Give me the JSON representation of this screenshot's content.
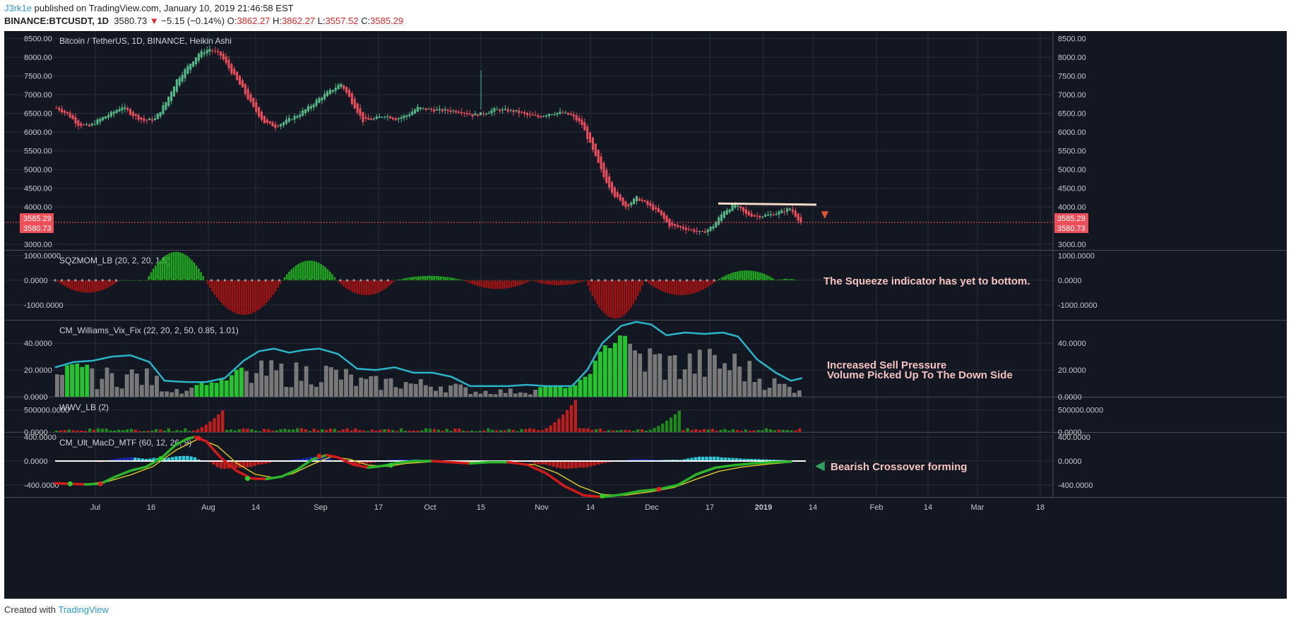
{
  "header": {
    "user": "J3rk1e",
    "published": "published on TradingView.com, January 10, 2019 21:46:58 EST",
    "symbol": "BINANCE:BTCUSDT, 1D",
    "last": "3580.73",
    "arrow": "▼",
    "change": "−5.15 (−0.14%)",
    "o_label": "O:",
    "o": "3862.27",
    "h_label": "H:",
    "h": "3862.27",
    "l_label": "L:",
    "l": "3557.52",
    "c_label": "C:",
    "c": "3585.29"
  },
  "footer": {
    "created_with": "Created with",
    "brand": "TradingView"
  },
  "colors": {
    "background": "#131722",
    "grid": "#2a2e39",
    "bull": "#53b987",
    "bear": "#eb4d5c",
    "price_tag": "#f0505a",
    "teal": "#2ab4c8",
    "green_hist": "#22c52e",
    "gray_hist": "#787878",
    "red_hist": "#c21d1d",
    "annotation": "#f5c4c0"
  },
  "chart_data": [
    {
      "type": "candlestick",
      "title": "Bitcoin / TetherUS, 1D, BINANCE, Heikin Ashi",
      "x_ticks": [
        "Jul",
        "16",
        "Aug",
        "14",
        "Sep",
        "17",
        "Oct",
        "15",
        "Nov",
        "14",
        "Dec",
        "17",
        "2019",
        "14",
        "Feb",
        "14",
        "Mar",
        "18"
      ],
      "y_ticks": [
        "8500.00",
        "8000.00",
        "7500.00",
        "7000.00",
        "6500.00",
        "6000.00",
        "5500.00",
        "5000.00",
        "4500.00",
        "4000.00",
        "3000.00"
      ],
      "ylim": [
        2850,
        8700
      ],
      "price_tags": [
        "3585.29",
        "3580.73"
      ],
      "close_path": [
        [
          0,
          6650
        ],
        [
          4,
          6480
        ],
        [
          8,
          6200
        ],
        [
          12,
          6150
        ],
        [
          16,
          6350
        ],
        [
          20,
          6500
        ],
        [
          24,
          6680
        ],
        [
          28,
          6450
        ],
        [
          32,
          6300
        ],
        [
          36,
          6350
        ],
        [
          40,
          6800
        ],
        [
          44,
          7400
        ],
        [
          48,
          7750
        ],
        [
          52,
          8100
        ],
        [
          56,
          8220
        ],
        [
          60,
          8050
        ],
        [
          64,
          7600
        ],
        [
          68,
          7150
        ],
        [
          72,
          6650
        ],
        [
          76,
          6250
        ],
        [
          80,
          6150
        ],
        [
          84,
          6300
        ],
        [
          88,
          6450
        ],
        [
          92,
          6650
        ],
        [
          96,
          6900
        ],
        [
          100,
          7100
        ],
        [
          104,
          7300
        ],
        [
          108,
          6800
        ],
        [
          112,
          6300
        ],
        [
          116,
          6350
        ],
        [
          120,
          6450
        ],
        [
          124,
          6350
        ],
        [
          128,
          6450
        ],
        [
          132,
          6650
        ],
        [
          136,
          6600
        ],
        [
          140,
          6580
        ],
        [
          144,
          6570
        ],
        [
          148,
          6550
        ],
        [
          152,
          6450
        ],
        [
          156,
          6500
        ],
        [
          160,
          6600
        ],
        [
          164,
          6580
        ],
        [
          168,
          6550
        ],
        [
          172,
          6450
        ],
        [
          176,
          6400
        ],
        [
          180,
          6500
        ],
        [
          184,
          6520
        ],
        [
          188,
          6450
        ],
        [
          192,
          6200
        ],
        [
          196,
          5500
        ],
        [
          200,
          4800
        ],
        [
          204,
          4300
        ],
        [
          208,
          4000
        ],
        [
          212,
          4250
        ],
        [
          216,
          4050
        ],
        [
          220,
          3850
        ],
        [
          224,
          3500
        ],
        [
          228,
          3450
        ],
        [
          232,
          3380
        ],
        [
          236,
          3300
        ],
        [
          240,
          3500
        ],
        [
          244,
          3900
        ],
        [
          248,
          4050
        ],
        [
          252,
          3800
        ],
        [
          256,
          3750
        ],
        [
          260,
          3780
        ],
        [
          264,
          3850
        ],
        [
          268,
          3960
        ],
        [
          272,
          3585
        ]
      ],
      "resistance": [
        [
          3.2,
          4090
        ],
        [
          3.68,
          4060
        ]
      ],
      "volume_wick_note": "Oct 15 spike high ~7650",
      "annotation": "▼"
    },
    {
      "type": "histogram",
      "title": "SQZMOM_LB (20, 2, 20, 1.5)",
      "y_ticks": [
        "1000.0000",
        "0.0000",
        "-1000.0000"
      ],
      "ylim": [
        -1600,
        1200
      ],
      "annotation": "The Squeeze indicator has yet to bottom.",
      "segments": [
        [
          0,
          28,
          -500
        ],
        [
          28,
          40,
          0
        ],
        [
          40,
          66,
          1150
        ],
        [
          66,
          100,
          -1400
        ],
        [
          100,
          124,
          800
        ],
        [
          124,
          150,
          -600
        ],
        [
          150,
          180,
          180
        ],
        [
          180,
          210,
          -350
        ],
        [
          210,
          234,
          -200
        ],
        [
          234,
          260,
          -1550
        ],
        [
          260,
          292,
          -600
        ],
        [
          292,
          318,
          400
        ],
        [
          318,
          328,
          60
        ]
      ]
    },
    {
      "type": "histogram_line",
      "title": "CM_Williams_Vix_Fix (22, 20, 2, 50, 0.85, 1.01)",
      "y_ticks": [
        "40.0000",
        "20.0000",
        "0.0000"
      ],
      "ylim": [
        0,
        57
      ],
      "annotation_line1": "Increased Sell Pressure",
      "annotation_line2": "Volume Picked Up To The Down Side",
      "line": [
        [
          0,
          22
        ],
        [
          10,
          26
        ],
        [
          20,
          27
        ],
        [
          30,
          30
        ],
        [
          40,
          31
        ],
        [
          50,
          26
        ],
        [
          58,
          12
        ],
        [
          70,
          11
        ],
        [
          80,
          11
        ],
        [
          90,
          14
        ],
        [
          100,
          27
        ],
        [
          108,
          34
        ],
        [
          116,
          36
        ],
        [
          124,
          33
        ],
        [
          132,
          35
        ],
        [
          140,
          36
        ],
        [
          150,
          32
        ],
        [
          160,
          21
        ],
        [
          170,
          20
        ],
        [
          180,
          22
        ],
        [
          190,
          18
        ],
        [
          200,
          18
        ],
        [
          210,
          15
        ],
        [
          220,
          8
        ],
        [
          240,
          8
        ],
        [
          250,
          9
        ],
        [
          260,
          8
        ],
        [
          274,
          8
        ],
        [
          282,
          20
        ],
        [
          290,
          40
        ],
        [
          300,
          53
        ],
        [
          308,
          56
        ],
        [
          316,
          54
        ],
        [
          324,
          46
        ],
        [
          334,
          48
        ],
        [
          344,
          47
        ],
        [
          354,
          48
        ],
        [
          362,
          45
        ],
        [
          372,
          28
        ],
        [
          382,
          18
        ],
        [
          390,
          12
        ],
        [
          396,
          14
        ]
      ],
      "green_ranges": [
        [
          3,
          17
        ],
        [
          72,
          98
        ],
        [
          256,
          302
        ]
      ]
    },
    {
      "type": "histogram",
      "title": "WWV_LB (2)",
      "y_ticks": [
        "500000.0000",
        "0.0000"
      ],
      "ylim": [
        0,
        780000
      ],
      "spikes": [
        [
          72,
          90,
          550000
        ],
        [
          256,
          276,
          750000
        ],
        [
          312,
          330,
          450000
        ]
      ]
    },
    {
      "type": "macd",
      "title": "CM_Ult_MacD_MTF (60, 12, 26, 9)",
      "y_ticks": [
        "400.0000",
        "0.0000",
        "-400.0000"
      ],
      "ylim": [
        -600,
        470
      ],
      "annotation": "Bearish Crossover forming",
      "macd": [
        [
          0,
          -370
        ],
        [
          8,
          -380
        ],
        [
          16,
          -390
        ],
        [
          24,
          -380
        ],
        [
          32,
          -260
        ],
        [
          40,
          -160
        ],
        [
          48,
          -100
        ],
        [
          56,
          40
        ],
        [
          64,
          270
        ],
        [
          70,
          370
        ],
        [
          74,
          400
        ],
        [
          80,
          330
        ],
        [
          88,
          50
        ],
        [
          96,
          -160
        ],
        [
          104,
          -290
        ],
        [
          112,
          -300
        ],
        [
          120,
          -260
        ],
        [
          128,
          -150
        ],
        [
          136,
          20
        ],
        [
          144,
          100
        ],
        [
          150,
          60
        ],
        [
          158,
          -60
        ],
        [
          166,
          -110
        ],
        [
          174,
          -80
        ],
        [
          182,
          -30
        ],
        [
          190,
          0
        ],
        [
          200,
          0
        ],
        [
          210,
          -20
        ],
        [
          220,
          -40
        ],
        [
          230,
          -20
        ],
        [
          240,
          -20
        ],
        [
          250,
          -60
        ],
        [
          260,
          -200
        ],
        [
          270,
          -420
        ],
        [
          280,
          -570
        ],
        [
          290,
          -600
        ],
        [
          300,
          -560
        ],
        [
          310,
          -500
        ],
        [
          320,
          -470
        ],
        [
          330,
          -400
        ],
        [
          340,
          -220
        ],
        [
          350,
          -110
        ],
        [
          360,
          -70
        ],
        [
          370,
          -40
        ],
        [
          380,
          -20
        ],
        [
          390,
          -10
        ]
      ],
      "signal": [
        [
          0,
          -380
        ],
        [
          16,
          -390
        ],
        [
          28,
          -340
        ],
        [
          40,
          -230
        ],
        [
          52,
          -90
        ],
        [
          64,
          180
        ],
        [
          76,
          370
        ],
        [
          86,
          250
        ],
        [
          96,
          -30
        ],
        [
          106,
          -220
        ],
        [
          116,
          -280
        ],
        [
          126,
          -210
        ],
        [
          136,
          -60
        ],
        [
          146,
          70
        ],
        [
          156,
          30
        ],
        [
          166,
          -70
        ],
        [
          176,
          -90
        ],
        [
          186,
          -40
        ],
        [
          200,
          -10
        ],
        [
          220,
          -20
        ],
        [
          240,
          -30
        ],
        [
          254,
          -60
        ],
        [
          266,
          -200
        ],
        [
          278,
          -420
        ],
        [
          290,
          -560
        ],
        [
          302,
          -570
        ],
        [
          316,
          -510
        ],
        [
          328,
          -440
        ],
        [
          340,
          -300
        ],
        [
          352,
          -170
        ],
        [
          364,
          -100
        ],
        [
          378,
          -50
        ],
        [
          390,
          -20
        ]
      ]
    }
  ],
  "x_axis_labels": [
    "Jul",
    "16",
    "Aug",
    "14",
    "Sep",
    "17",
    "Oct",
    "15",
    "Nov",
    "14",
    "Dec",
    "17",
    "2019",
    "14",
    "Feb",
    "14",
    "Mar",
    "18"
  ]
}
